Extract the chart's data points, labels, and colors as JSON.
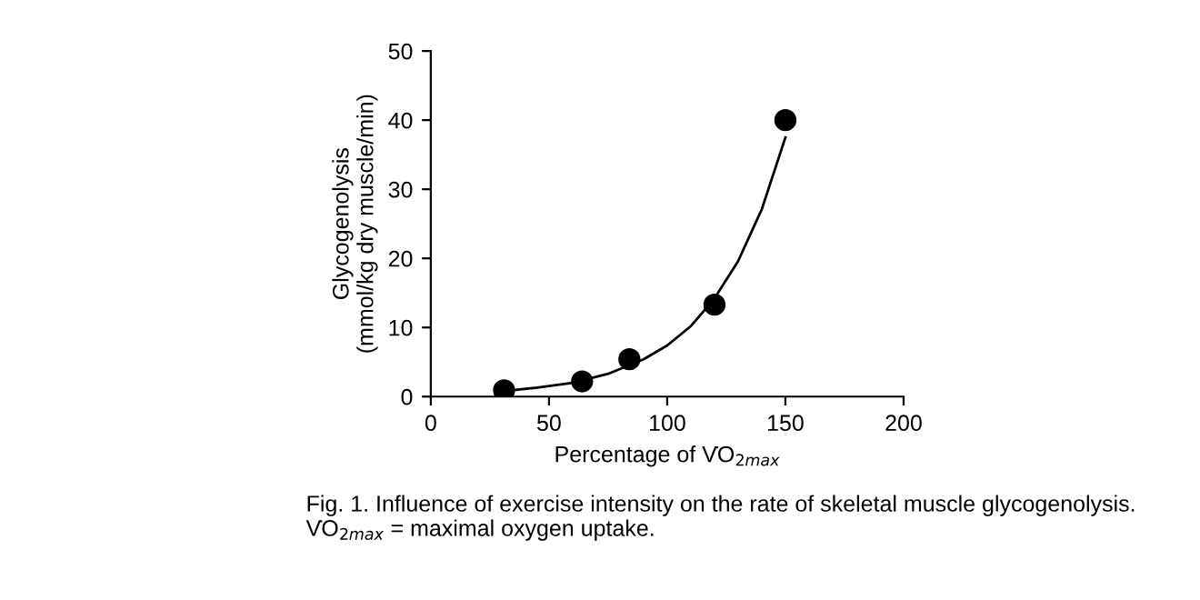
{
  "chart_data": {
    "type": "scatter",
    "xlabel": "Percentage of V̇O$_{2max}$",
    "ylabel": "Glycogenolysis\n(mmol/kg dry muscle/min)",
    "annotations": [
      "Fig. 1. Influence of exercise intensity on the rate of skeletal muscle glycogenolysis. V̇O$_{2max}$ = maximal oxygen uptake."
    ],
    "series": [
      {
        "color": "#000000",
        "marker": "circle",
        "x": [
          31,
          64,
          84,
          120,
          150
        ],
        "values": [
          0.9,
          2.2,
          5.4,
          13.3,
          40
        ]
      },
      {
        "type": "line",
        "color": "#000000",
        "line_style": "solid",
        "x": [
          31,
          45,
          60,
          75,
          90,
          100,
          110,
          120,
          130,
          140,
          150
        ],
        "values": [
          0.8,
          1.3,
          2.0,
          3.3,
          5.4,
          7.4,
          10.2,
          14.2,
          19.6,
          27.1,
          37.5
        ]
      }
    ],
    "xlim": [
      0,
      200
    ],
    "xticks": [
      0,
      50,
      100,
      150,
      200
    ],
    "ylim": [
      0,
      50
    ],
    "yticks": [
      0,
      10,
      20,
      30,
      40,
      50
    ],
    "grid": false,
    "legend": false
  }
}
